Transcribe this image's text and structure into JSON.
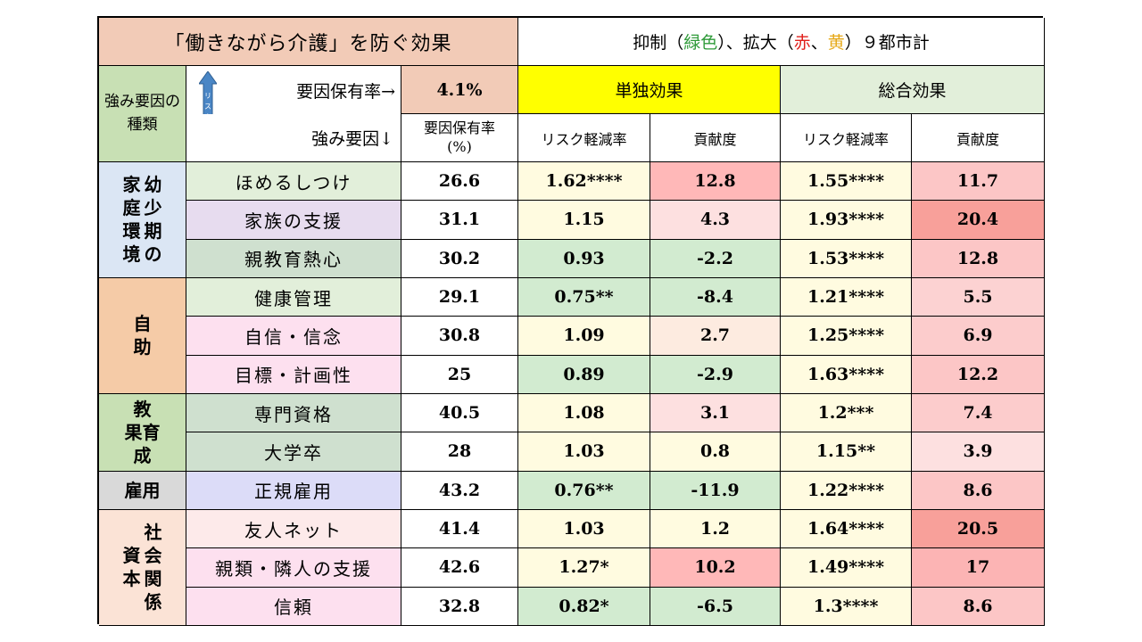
{
  "title": "「働きながら介護」を防ぐ効果",
  "legend": {
    "prefix": "抑制（",
    "green": "緑色",
    "mid": "）、拡大（",
    "red": "赤",
    "sep": "、",
    "yellow": "黄",
    "suffix": "）９都市計",
    "colors": {
      "green": "#2e9a38",
      "red": "#e0201c",
      "yellow": "#e6a817"
    }
  },
  "headers": {
    "category": "強み要因の種類",
    "risk_reduction_label": "リスク軽減",
    "factor_rate_arrow": "要因保有率→",
    "base_rate": "4.1%",
    "single_effect": "単独効果",
    "total_effect": "総合効果",
    "strength_factor": "強み要因↓",
    "factor_rate": "要因保有率",
    "factor_rate_unit": "(%)",
    "risk_rate": "リスク軽減率",
    "contribution": "貢献度"
  },
  "categories": [
    {
      "label_cols": [
        [
          "家",
          "庭",
          "環",
          "境"
        ],
        [
          "幼",
          "少",
          "期",
          "の"
        ]
      ],
      "color": "#dbe6f4"
    },
    {
      "label": "自\n助",
      "color": "#f5cba7"
    },
    {
      "label_lines": [
        "教",
        "果育",
        "成"
      ],
      "color": "#c8e0b4"
    },
    {
      "label": "雇用",
      "color": "#d9d9d9"
    },
    {
      "label_cols": [
        [
          "資",
          "本"
        ],
        [
          "社",
          "会",
          "関",
          "係"
        ]
      ],
      "color": "#fbe3d6"
    }
  ],
  "rows": [
    {
      "factor": "ほめるしつけ",
      "rate": "26.6",
      "s_risk": "1.62****",
      "s_contrib": "12.8",
      "t_risk": "1.55****",
      "t_contrib": "11.7",
      "colors": [
        "#e2efda",
        "#fffbe0",
        "#ffb8b8",
        "#fffbe0",
        "#fcc6c6"
      ]
    },
    {
      "factor": "家族の支援",
      "rate": "31.1",
      "s_risk": "1.15",
      "s_contrib": "4.3",
      "t_risk": "1.93****",
      "t_contrib": "20.4",
      "colors": [
        "#e7dcef",
        "#fffbe0",
        "#fde0e0",
        "#fffbe0",
        "#f8a09a"
      ]
    },
    {
      "factor": "親教育熱心",
      "rate": "30.2",
      "s_risk": "0.93",
      "s_contrib": "-2.2",
      "t_risk": "1.53****",
      "t_contrib": "12.8",
      "colors": [
        "#cfe0cf",
        "#d2ebd0",
        "#d2ebd0",
        "#fffbe0",
        "#fcc6c6"
      ]
    },
    {
      "factor": "健康管理",
      "rate": "29.1",
      "s_risk": "0.75**",
      "s_contrib": "-8.4",
      "t_risk": "1.21****",
      "t_contrib": "5.5",
      "colors": [
        "#e2efda",
        "#d2ebd0",
        "#d2ebd0",
        "#fffbe0",
        "#fcd2d2"
      ]
    },
    {
      "factor": "自信・信念",
      "rate": "30.8",
      "s_risk": "1.09",
      "s_contrib": "2.7",
      "t_risk": "1.25****",
      "t_contrib": "6.9",
      "colors": [
        "#fde0ef",
        "#fffbe0",
        "#fdebe0",
        "#fffbe0",
        "#fccccc"
      ]
    },
    {
      "factor": "目標・計画性",
      "rate": "25",
      "s_risk": "0.89",
      "s_contrib": "-2.9",
      "t_risk": "1.63****",
      "t_contrib": "12.2",
      "colors": [
        "#fde0ef",
        "#d2ebd0",
        "#d2ebd0",
        "#fffbe0",
        "#fcc6c6"
      ]
    },
    {
      "factor": "専門資格",
      "rate": "40.5",
      "s_risk": "1.08",
      "s_contrib": "3.1",
      "t_risk": "1.2***",
      "t_contrib": "7.4",
      "colors": [
        "#cfe0cf",
        "#fffbe0",
        "#fde0e0",
        "#fffbe0",
        "#fccccc"
      ]
    },
    {
      "factor": "大学卒",
      "rate": "28",
      "s_risk": "1.03",
      "s_contrib": "0.8",
      "t_risk": "1.15**",
      "t_contrib": "3.9",
      "colors": [
        "#cfe0cf",
        "#fffbe0",
        "#fffbe0",
        "#fffbe0",
        "#fde0e0"
      ]
    },
    {
      "factor": "正規雇用",
      "rate": "43.2",
      "s_risk": "0.76**",
      "s_contrib": "-11.9",
      "t_risk": "1.22****",
      "t_contrib": "8.6",
      "colors": [
        "#dcdcf8",
        "#d2ebd0",
        "#d2ebd0",
        "#fffbe0",
        "#fcc6c6"
      ]
    },
    {
      "factor": "友人ネット",
      "rate": "41.4",
      "s_risk": "1.03",
      "s_contrib": "1.2",
      "t_risk": "1.64****",
      "t_contrib": "20.5",
      "colors": [
        "#fdeaea",
        "#fffbe0",
        "#fffbe0",
        "#fffbe0",
        "#f8a09a"
      ]
    },
    {
      "factor": "親類・隣人の支援",
      "rate": "42.6",
      "s_risk": "1.27*",
      "s_contrib": "10.2",
      "t_risk": "1.49****",
      "t_contrib": "17",
      "colors": [
        "#fde0ef",
        "#fffbe0",
        "#ffb8b8",
        "#fffbe0",
        "#fcb4b4"
      ]
    },
    {
      "factor": "信頼",
      "rate": "32.8",
      "s_risk": "0.82*",
      "s_contrib": "-6.5",
      "t_risk": "1.3****",
      "t_contrib": "8.6",
      "colors": [
        "#fde0ef",
        "#d2ebd0",
        "#d2ebd0",
        "#fffbe0",
        "#fcc6c6"
      ]
    }
  ]
}
